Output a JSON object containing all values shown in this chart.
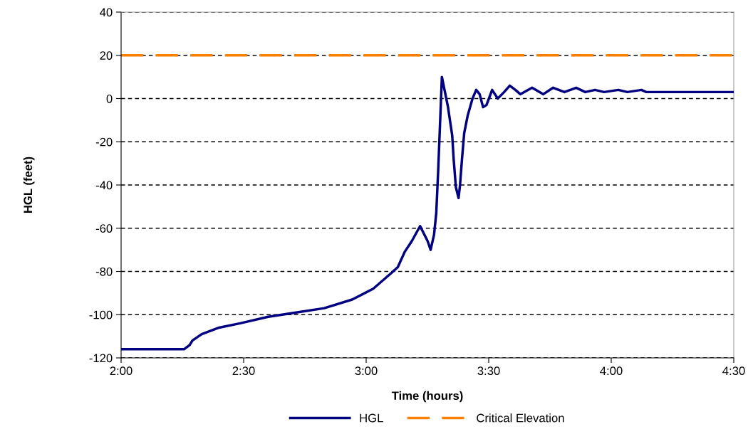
{
  "chart_data": {
    "type": "line",
    "xlabel": "Time (hours)",
    "ylabel": "HGL (feet)",
    "xlim": [
      2,
      4.5
    ],
    "xticks": [
      {
        "value": 2,
        "label": "2:00"
      },
      {
        "value": 2.5,
        "label": "2:30"
      },
      {
        "value": 3,
        "label": "3:00"
      },
      {
        "value": 3.5,
        "label": "3:30"
      },
      {
        "value": 4,
        "label": "4:00"
      },
      {
        "value": 4.5,
        "label": "4:30"
      }
    ],
    "ylim": [
      -120,
      40
    ],
    "yticks": [
      -120,
      -100,
      -80,
      -60,
      -40,
      -20,
      0,
      20,
      40
    ],
    "grid": "y",
    "legend": "bottom",
    "marker": "none",
    "line_style": "solid",
    "series": [
      {
        "name": "HGL",
        "color": "#000080",
        "x": [
          2.0,
          2.257,
          2.28,
          2.291,
          2.329,
          2.4,
          2.486,
          2.6,
          2.714,
          2.829,
          2.943,
          3.029,
          3.1,
          3.129,
          3.157,
          3.186,
          3.22,
          3.251,
          3.263,
          3.277,
          3.286,
          3.294,
          3.309,
          3.334,
          3.351,
          3.357,
          3.366,
          3.377,
          3.383,
          3.391,
          3.4,
          3.414,
          3.434,
          3.449,
          3.463,
          3.477,
          3.491,
          3.514,
          3.537,
          3.563,
          3.586,
          3.609,
          3.629,
          3.677,
          3.723,
          3.763,
          3.809,
          3.857,
          3.894,
          3.934,
          3.971,
          4.029,
          4.066,
          4.123,
          4.143,
          4.5
        ],
        "values": [
          -116,
          -116,
          -114,
          -112,
          -109,
          -106,
          -104,
          -101,
          -99,
          -97,
          -93,
          -88,
          -81,
          -78,
          -71,
          -66,
          -59,
          -66,
          -70,
          -63,
          -53,
          -33,
          10,
          -4,
          -17,
          -28,
          -41,
          -46,
          -40,
          -28,
          -16,
          -8,
          0,
          4,
          2,
          -4,
          -3,
          4,
          0,
          3,
          6,
          4,
          2,
          5,
          2,
          5,
          3,
          5,
          3,
          4,
          3,
          4,
          3,
          4,
          3,
          3
        ]
      }
    ],
    "ref_lines": [
      {
        "axis": "y",
        "value": 20,
        "label": "Critical Elevation",
        "color": "#ff8000",
        "line_style": "dashed"
      }
    ]
  }
}
